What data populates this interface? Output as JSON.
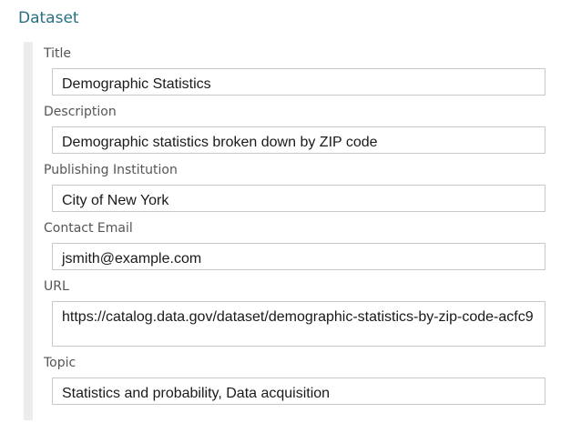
{
  "section": {
    "title": "Dataset"
  },
  "fields": {
    "title": {
      "label": "Title",
      "value": "Demographic Statistics"
    },
    "description": {
      "label": "Description",
      "value": "Demographic statistics broken down by ZIP code"
    },
    "publishing_institution": {
      "label": "Publishing Institution",
      "value": "City of New York"
    },
    "contact_email": {
      "label": "Contact Email",
      "value": "jsmith@example.com"
    },
    "url": {
      "label": "URL",
      "value": "https://catalog.data.gov/dataset/demographic-statistics-by-zip-code-acfc9"
    },
    "topic": {
      "label": "Topic",
      "value": "Statistics and probability, Data acquisition"
    }
  }
}
